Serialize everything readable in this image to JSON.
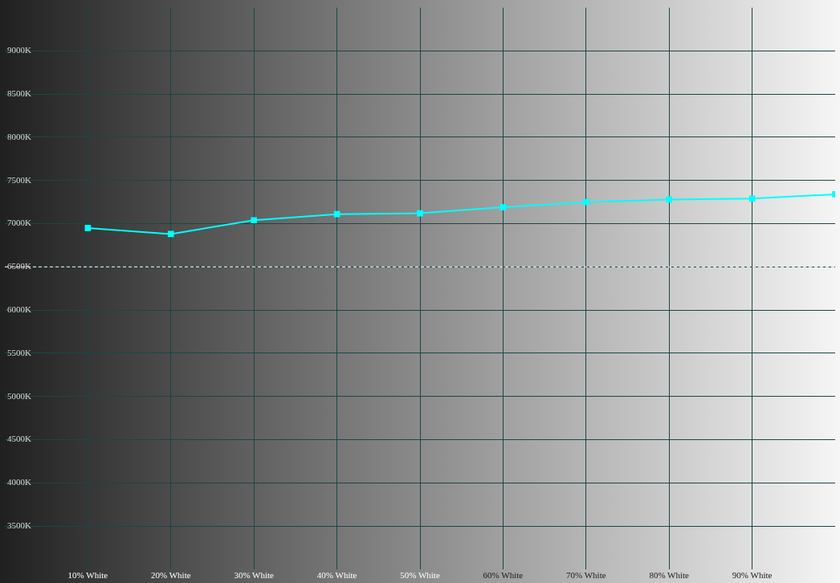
{
  "chart_data": {
    "type": "line",
    "x": [
      10,
      20,
      30,
      40,
      50,
      60,
      70,
      80,
      90,
      100
    ],
    "series": [
      {
        "color": "#00ffff",
        "values": [
          6950,
          6880,
          7040,
          7110,
          7120,
          7190,
          7250,
          7280,
          7290,
          7340
        ]
      }
    ],
    "xlim": [
      0,
      100
    ],
    "xticks": [
      {
        "value": 10,
        "label": "10% White"
      },
      {
        "value": 20,
        "label": "20% White"
      },
      {
        "value": 30,
        "label": "30% White"
      },
      {
        "value": 40,
        "label": "40% White"
      },
      {
        "value": 50,
        "label": "50% White"
      },
      {
        "value": 60,
        "label": "60% White"
      },
      {
        "value": 70,
        "label": "70% White"
      },
      {
        "value": 80,
        "label": "80% White"
      },
      {
        "value": 90,
        "label": "90% White"
      }
    ],
    "ylim": [
      3000,
      9500
    ],
    "yticks": [
      {
        "value": 3500,
        "label": "3500K"
      },
      {
        "value": 4000,
        "label": "4000K"
      },
      {
        "value": 4500,
        "label": "4500K"
      },
      {
        "value": 5000,
        "label": "5000K"
      },
      {
        "value": 5500,
        "label": "5500K"
      },
      {
        "value": 6000,
        "label": "6000K"
      },
      {
        "value": 6500,
        "label": "6500K"
      },
      {
        "value": 7000,
        "label": "7000K"
      },
      {
        "value": 7500,
        "label": "7500K"
      },
      {
        "value": 8000,
        "label": "8000K"
      },
      {
        "value": 8500,
        "label": "8500K"
      },
      {
        "value": 9000,
        "label": "9000K"
      }
    ],
    "ref_lines": [
      {
        "axis": "y",
        "value": 6500,
        "color": "#ffffff",
        "line_style": "dashed"
      }
    ],
    "grid": true,
    "legend": false,
    "marker": "square",
    "line_style": "solid"
  }
}
